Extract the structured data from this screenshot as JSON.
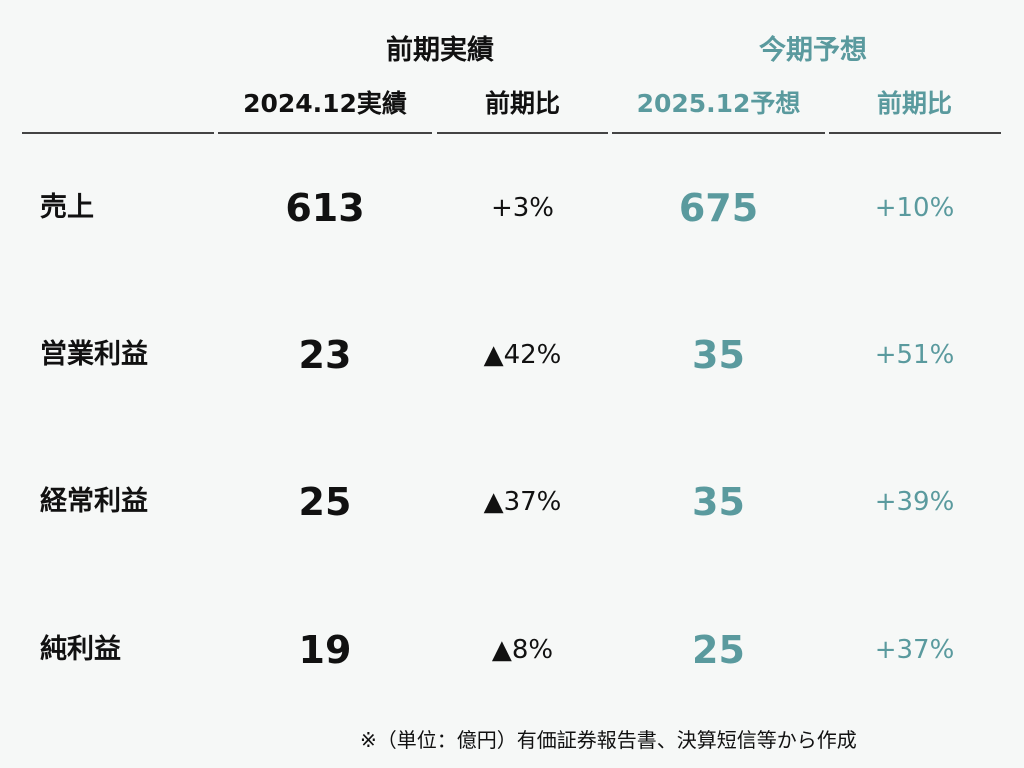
{
  "header": {
    "prev_group": "前期実績",
    "curr_group": "今期予想",
    "columns": {
      "actual": "2024.12実績",
      "actual_yoy": "前期比",
      "forecast": "2025.12予想",
      "forecast_yoy": "前期比"
    }
  },
  "rows": [
    {
      "label": "売上",
      "actual": "613",
      "actual_yoy": "+3%",
      "forecast": "675",
      "forecast_yoy": "+10%"
    },
    {
      "label": "営業利益",
      "actual": "23",
      "actual_yoy": "▲42%",
      "forecast": "35",
      "forecast_yoy": "+51%"
    },
    {
      "label": "経常利益",
      "actual": "25",
      "actual_yoy": "▲37%",
      "forecast": "35",
      "forecast_yoy": "+39%"
    },
    {
      "label": "純利益",
      "actual": "19",
      "actual_yoy": "▲8%",
      "forecast": "25",
      "forecast_yoy": "+37%"
    }
  ],
  "note": "※（単位：億円）有価証券報告書、決算短信等から作成",
  "colors": {
    "background": "#f6f8f7",
    "text": "#111111",
    "forecast_accent": "#5a9a9e",
    "rule": "#444444"
  }
}
